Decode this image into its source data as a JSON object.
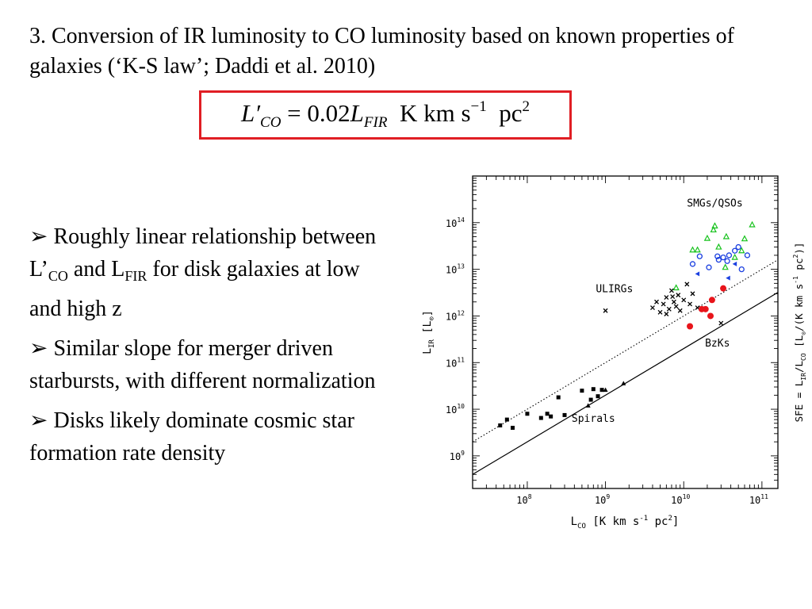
{
  "heading": "3. Conversion of IR luminosity to CO luminosity based on known properties of galaxies (‘K-S law’; Daddi et al. 2010)",
  "equation": {
    "lhs_base": "L′",
    "lhs_sub": "CO",
    "equals": "=",
    "coefficient": "0.02",
    "rhs_base": "L",
    "rhs_sub": "FIR",
    "units": "K km s",
    "units_exp1": "−1",
    "units_pc": "pc",
    "units_exp2": "2",
    "box_color": "#e01e24"
  },
  "bullets": [
    {
      "marker": "➢",
      "text_a": "Roughly linear relationship between L’",
      "sub_a": "CO",
      "text_b": " and L",
      "sub_b": "FIR",
      "text_c": " for disk galaxies at low and high z"
    },
    {
      "marker": "➢",
      "text": "Similar slope for merger driven starbursts, with different normalization"
    },
    {
      "marker": "➢",
      "text": "Disks likely dominate cosmic star formation rate density"
    }
  ],
  "chart_data": {
    "type": "scatter",
    "log_x": true,
    "log_y": true,
    "xlim": [
      20000000,
      160000000000
    ],
    "ylim": [
      200000000,
      1000000000000000
    ],
    "x_ticks": [
      {
        "value": 100000000,
        "base": "10",
        "exp": "8"
      },
      {
        "value": 1000000000,
        "base": "10",
        "exp": "9"
      },
      {
        "value": 10000000000,
        "base": "10",
        "exp": "10"
      },
      {
        "value": 100000000000,
        "base": "10",
        "exp": "11"
      }
    ],
    "y_ticks": [
      {
        "value": 1000000000,
        "base": "10",
        "exp": "9"
      },
      {
        "value": 10000000000,
        "base": "10",
        "exp": "10"
      },
      {
        "value": 100000000000,
        "base": "10",
        "exp": "11"
      },
      {
        "value": 1000000000000,
        "base": "10",
        "exp": "12"
      },
      {
        "value": 10000000000000,
        "base": "10",
        "exp": "13"
      },
      {
        "value": 100000000000000,
        "base": "10",
        "exp": "14"
      }
    ],
    "xlabel": {
      "pre": "L",
      "sub": "CO",
      "post": " [K km s",
      "exp1": "-1",
      "mid": " pc",
      "exp2": "2",
      "end": "]"
    },
    "ylabel": {
      "pre": "L",
      "sub": "IR",
      "post": " [L",
      "sub2": "⊙",
      "end": "]"
    },
    "right_label": {
      "pre": "SFE = L",
      "sub": "IR",
      "mid": "/L",
      "sub2": "CO",
      "mid2": " [L",
      "sub3": "⊙",
      "mid3": "/(K km s",
      "exp1": "-1",
      "mid4": " pc",
      "exp2": "2",
      "end": ")]"
    },
    "annotations": [
      {
        "text": "SMGs/QSOs",
        "x": 25000000000.0,
        "y": 220000000000000.0
      },
      {
        "text": "ULIRGs",
        "x": 1300000000.0,
        "y": 3200000000000.0
      },
      {
        "text": "BzKs",
        "x": 27000000000.0,
        "y": 220000000000.0
      },
      {
        "text": "Spirals",
        "x": 700000000.0,
        "y": 5400000000.0
      }
    ],
    "lines": [
      {
        "name": "",
        "style": "solid",
        "points": [
          [
            20000000,
            400000000
          ],
          [
            160000000000,
            3200000000000
          ]
        ]
      },
      {
        "name": "",
        "style": "dotted",
        "points": [
          [
            20000000,
            2000000000
          ],
          [
            160000000000,
            16000000000000
          ]
        ]
      }
    ],
    "series": [
      {
        "marker": "square",
        "color": "#000000",
        "points": [
          [
            45000000.0,
            4500000000.0
          ],
          [
            55000000.0,
            6000000000.0
          ],
          [
            65000000.0,
            4000000000.0
          ],
          [
            100000000.0,
            8000000000.0
          ],
          [
            150000000.0,
            6500000000.0
          ],
          [
            180000000.0,
            8000000000.0
          ],
          [
            200000000.0,
            7000000000.0
          ],
          [
            250000000.0,
            18000000000.0
          ],
          [
            300000000.0,
            7500000000.0
          ],
          [
            500000000.0,
            25000000000.0
          ],
          [
            650000000.0,
            16000000000.0
          ],
          [
            700000000.0,
            27000000000.0
          ],
          [
            800000000.0,
            19000000000.0
          ],
          [
            900000000.0,
            26000000000.0
          ]
        ]
      },
      {
        "marker": "filled-triangle",
        "color": "#000000",
        "points": [
          [
            600000000.0,
            12000000000.0
          ],
          [
            1000000000.0,
            26000000000.0
          ],
          [
            1700000000.0,
            36000000000.0
          ]
        ]
      },
      {
        "marker": "x",
        "color": "#000000",
        "points": [
          [
            1000000000.0,
            1300000000000.0
          ],
          [
            4000000000.0,
            1500000000000.0
          ],
          [
            4500000000.0,
            2000000000000.0
          ],
          [
            5000000000.0,
            1200000000000.0
          ],
          [
            5500000000.0,
            1800000000000.0
          ],
          [
            6000000000.0,
            2500000000000.0
          ],
          [
            6500000000.0,
            1400000000000.0
          ],
          [
            7000000000.0,
            3500000000000.0
          ],
          [
            7500000000.0,
            2000000000000.0
          ],
          [
            8000000000.0,
            1600000000000.0
          ],
          [
            8500000000.0,
            2800000000000.0
          ],
          [
            9000000000.0,
            1300000000000.0
          ],
          [
            10000000000.0,
            2200000000000.0
          ],
          [
            11000000000.0,
            4800000000000.0
          ],
          [
            12000000000.0,
            1800000000000.0
          ],
          [
            13000000000.0,
            3000000000000.0
          ],
          [
            15000000000.0,
            1500000000000.0
          ],
          [
            30000000000.0,
            700000000000.0
          ],
          [
            6000000000.0,
            1100000000000.0
          ],
          [
            7200000000.0,
            2600000000000.0
          ]
        ]
      },
      {
        "marker": "filled-circle",
        "color": "#e8141a",
        "points": [
          [
            12000000000.0,
            600000000000.0
          ],
          [
            17000000000.0,
            1400000000000.0
          ],
          [
            19000000000.0,
            1400000000000.0
          ],
          [
            22000000000.0,
            1000000000000.0
          ],
          [
            23000000000.0,
            2200000000000.0
          ],
          [
            32000000000.0,
            3900000000000.0
          ]
        ]
      },
      {
        "marker": "open-triangle",
        "color": "#17c21d",
        "points": [
          [
            8000000000.0,
            4000000000000.0
          ],
          [
            13000000000.0,
            26000000000000.0
          ],
          [
            15000000000.0,
            26000000000000.0
          ],
          [
            20000000000.0,
            46000000000000.0
          ],
          [
            24000000000.0,
            70000000000000.0
          ],
          [
            28000000000.0,
            30000000000000.0
          ],
          [
            35000000000.0,
            50000000000000.0
          ],
          [
            45000000000.0,
            18000000000000.0
          ],
          [
            55000000000.0,
            25000000000000.0
          ],
          [
            60000000000.0,
            45000000000000.0
          ],
          [
            75000000000.0,
            90000000000000.0
          ],
          [
            25000000000.0,
            85000000000000.0
          ],
          [
            34000000000.0,
            11000000000000.0
          ]
        ]
      },
      {
        "marker": "open-circle",
        "color": "#1a3fe0",
        "points": [
          [
            13000000000.0,
            13000000000000.0
          ],
          [
            16000000000.0,
            19000000000000.0
          ],
          [
            21000000000.0,
            11000000000000.0
          ],
          [
            27000000000.0,
            19000000000000.0
          ],
          [
            32000000000.0,
            18000000000000.0
          ],
          [
            36000000000.0,
            15000000000000.0
          ],
          [
            45000000000.0,
            25000000000000.0
          ],
          [
            50000000000.0,
            30000000000000.0
          ],
          [
            38000000000.0,
            20000000000000.0
          ],
          [
            28000000000.0,
            16000000000000.0
          ],
          [
            65000000000.0,
            20000000000000.0
          ],
          [
            55000000000.0,
            10000000000000.0
          ]
        ]
      },
      {
        "marker": "filled-left-triangle",
        "color": "#1a3fe0",
        "points": [
          [
            15000000000.0,
            8000000000000.0
          ],
          [
            45000000000.0,
            13000000000000.0
          ],
          [
            37000000000.0,
            6500000000000.0
          ]
        ]
      }
    ]
  }
}
